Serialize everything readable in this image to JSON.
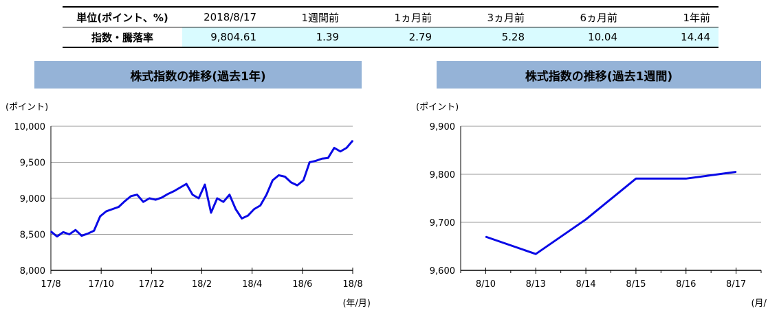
{
  "table": {
    "header": [
      "単位(ポイント、%)",
      "2018/8/17",
      "1週間前",
      "1ヵ月前",
      "3ヵ月前",
      "6ヵ月前",
      "1年前"
    ],
    "row_label": "指数・騰落率",
    "row_values": [
      "9,804.61",
      "1.39",
      "2.79",
      "5.28",
      "10.04",
      "14.44"
    ]
  },
  "chart_left": {
    "title_text": "株式指数の推移(過去1年)",
    "y_unit": "(ポイント)",
    "x_unit": "(年/月)",
    "y_tick_labels": [
      "10,000",
      "9,500",
      "9,000",
      "8,500",
      "8,000"
    ],
    "x_tick_labels": [
      "17/8",
      "17/10",
      "17/12",
      "18/2",
      "18/4",
      "18/6",
      "18/8"
    ]
  },
  "chart_right": {
    "title_text": "株式指数の推移(過去1週間)",
    "y_unit": "(ポイント)",
    "x_unit": "(月/日)",
    "y_tick_labels": [
      "9,900",
      "9,800",
      "9,700",
      "9,600"
    ],
    "x_tick_labels": [
      "8/10",
      "8/13",
      "8/14",
      "8/15",
      "8/16",
      "8/17"
    ]
  },
  "colors": {
    "line": "#0a0ae6",
    "title_bg": "#95b3d7",
    "highlight": "#d9fbff"
  },
  "chart_data": [
    {
      "type": "line",
      "title": "株式指数の推移(過去1年)",
      "xlabel": "(年/月)",
      "ylabel": "(ポイント)",
      "ylim": [
        8000,
        10000
      ],
      "grid": true,
      "x_ticks": [
        "17/8",
        "17/10",
        "17/12",
        "18/2",
        "18/4",
        "18/6",
        "18/8"
      ],
      "x": [
        "17/8",
        "17/8",
        "17/8",
        "17/8",
        "17/9",
        "17/9",
        "17/9",
        "17/9",
        "17/10",
        "17/10",
        "17/10",
        "17/10",
        "17/11",
        "17/11",
        "17/11",
        "17/11",
        "17/12",
        "17/12",
        "17/12",
        "17/12",
        "18/1",
        "18/1",
        "18/1",
        "18/1",
        "18/2",
        "18/2",
        "18/2",
        "18/2",
        "18/3",
        "18/3",
        "18/3",
        "18/3",
        "18/4",
        "18/4",
        "18/4",
        "18/4",
        "18/5",
        "18/5",
        "18/5",
        "18/5",
        "18/6",
        "18/6",
        "18/6",
        "18/6",
        "18/7",
        "18/7",
        "18/7",
        "18/7",
        "18/8",
        "18/8"
      ],
      "values": [
        8540,
        8470,
        8530,
        8500,
        8560,
        8480,
        8510,
        8550,
        8750,
        8820,
        8850,
        8880,
        8960,
        9030,
        9050,
        8950,
        9000,
        8980,
        9010,
        9060,
        9100,
        9150,
        9200,
        9050,
        9000,
        9190,
        8800,
        9000,
        8950,
        9050,
        8850,
        8720,
        8760,
        8850,
        8900,
        9050,
        9250,
        9320,
        9300,
        9220,
        9180,
        9250,
        9500,
        9520,
        9550,
        9560,
        9700,
        9650,
        9700,
        9800
      ]
    },
    {
      "type": "line",
      "title": "株式指数の推移(過去1週間)",
      "xlabel": "(月/日)",
      "ylabel": "(ポイント)",
      "ylim": [
        9600,
        9900
      ],
      "grid": true,
      "categories": [
        "8/10",
        "8/13",
        "8/14",
        "8/15",
        "8/16",
        "8/17"
      ],
      "values": [
        9670,
        9634,
        9706,
        9791,
        9791,
        9805
      ]
    }
  ]
}
